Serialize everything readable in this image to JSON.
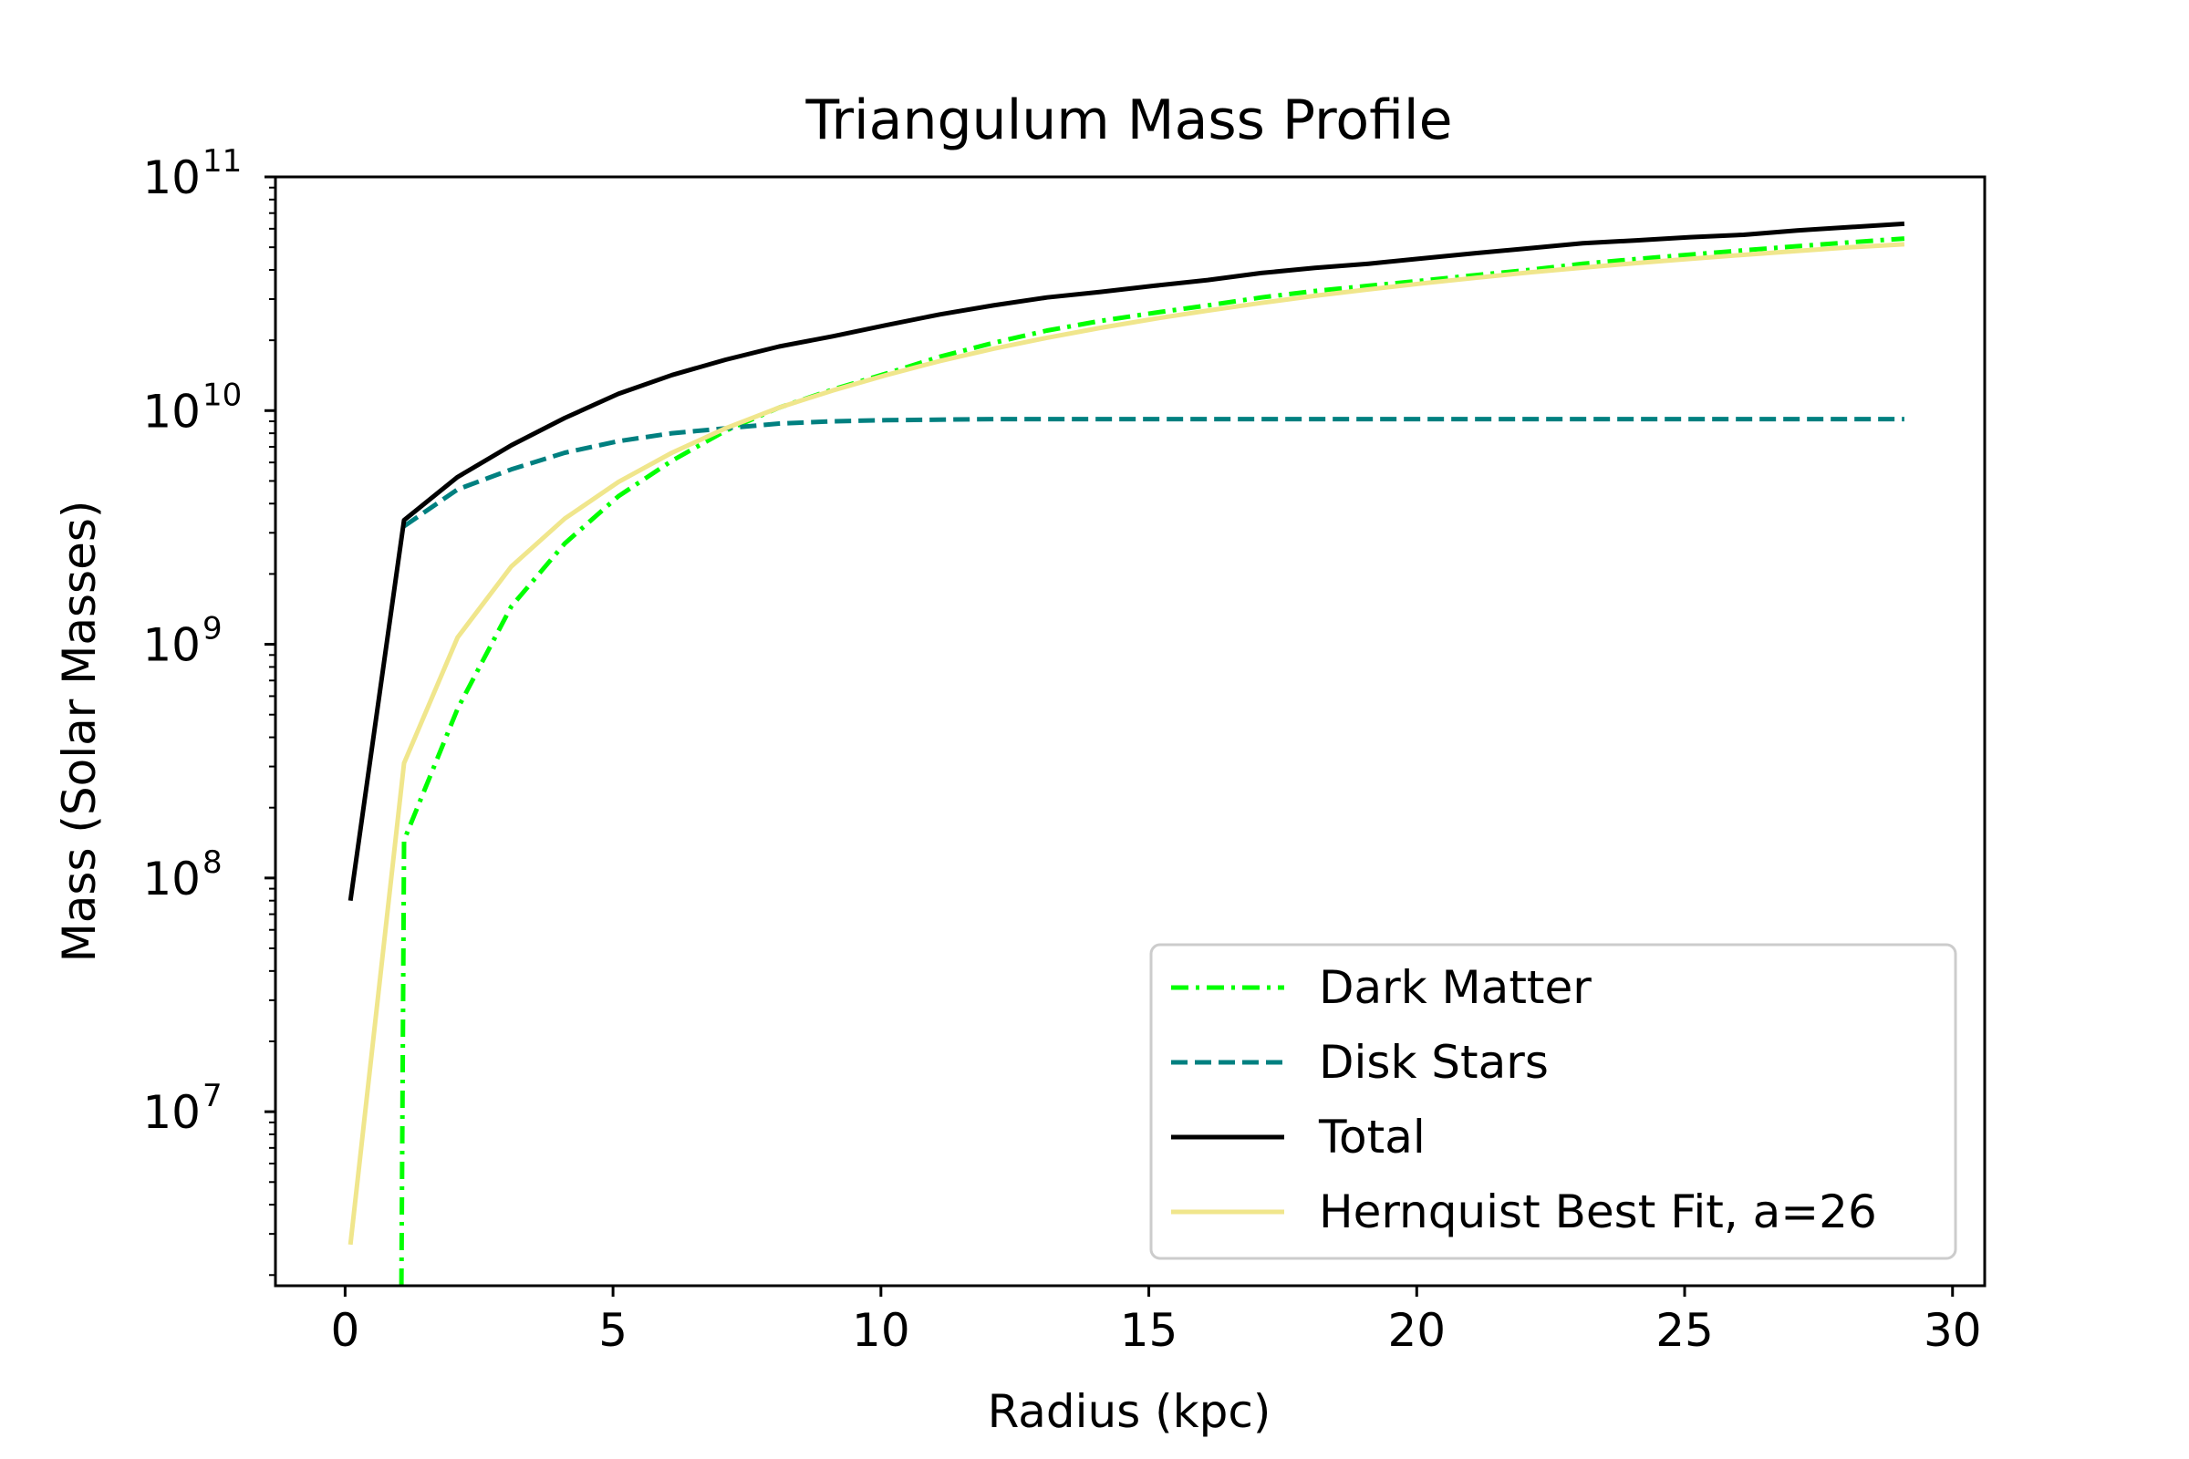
{
  "chart_data": {
    "type": "line",
    "title": "Triangulum Mass Profile",
    "xlabel": "Radius (kpc)",
    "ylabel": "Mass (Solar Masses)",
    "xlim": [
      -1.3,
      30.6
    ],
    "ylim": [
      1800000.0,
      100000000000.0
    ],
    "yscale": "log",
    "grid": false,
    "legend_position": "lower-right",
    "x_ticks": [
      0,
      5,
      10,
      15,
      20,
      25,
      30
    ],
    "y_ticks": [
      {
        "base": "10",
        "exp": "7",
        "value": 10000000.0
      },
      {
        "base": "10",
        "exp": "8",
        "value": 100000000.0
      },
      {
        "base": "10",
        "exp": "9",
        "value": 1000000000.0
      },
      {
        "base": "10",
        "exp": "10",
        "value": 10000000000.0
      },
      {
        "base": "10",
        "exp": "11",
        "value": 100000000000.0
      }
    ],
    "series": [
      {
        "name": "Dark Matter",
        "color": "#00ff00",
        "style": "dashdot",
        "x": [
          1.05,
          1.1,
          2.1,
          3.1,
          4.1,
          5.1,
          6.1,
          7.1,
          8.1,
          9.1,
          10.1,
          11.1,
          12.1,
          13.1,
          14.1,
          15.1,
          16.1,
          17.1,
          18.1,
          19.1,
          20.1,
          21.1,
          22.1,
          23.1,
          24.1,
          25.1,
          26.1,
          27.1,
          28.1,
          29.1
        ],
        "y": [
          1800000.0,
          145000000.0,
          530000000.0,
          1450000000.0,
          2700000000.0,
          4300000000.0,
          6100000000.0,
          8200000000.0,
          10300000000.0,
          12300000000.0,
          14400000000.0,
          17000000000.0,
          19500000000.0,
          22000000000.0,
          24200000000.0,
          26200000000.0,
          28200000000.0,
          30500000000.0,
          32500000000.0,
          34200000000.0,
          36000000000.0,
          38000000000.0,
          40000000000.0,
          42500000000.0,
          44500000000.0,
          46500000000.0,
          48500000000.0,
          50500000000.0,
          52500000000.0,
          54500000000.0
        ]
      },
      {
        "name": "Disk Stars",
        "color": "#008080",
        "style": "dashed",
        "x": [
          1.1,
          2.1,
          3.1,
          4.1,
          5.1,
          6.1,
          7.1,
          8.1,
          9.1,
          10.1,
          12.1,
          15.1,
          20.1,
          25.1,
          29.1
        ],
        "y": [
          3200000000.0,
          4600000000.0,
          5600000000.0,
          6600000000.0,
          7400000000.0,
          8000000000.0,
          8400000000.0,
          8800000000.0,
          9000000000.0,
          9100000000.0,
          9200000000.0,
          9200000000.0,
          9200000000.0,
          9200000000.0,
          9200000000.0
        ]
      },
      {
        "name": "Total",
        "color": "#000000",
        "style": "solid",
        "x": [
          0.1,
          1.1,
          2.1,
          3.1,
          4.1,
          5.1,
          6.1,
          7.1,
          8.1,
          9.1,
          10.1,
          11.1,
          12.1,
          13.1,
          14.1,
          15.1,
          16.1,
          17.1,
          18.1,
          19.1,
          20.1,
          21.1,
          22.1,
          23.1,
          24.1,
          25.1,
          26.1,
          27.1,
          28.1,
          29.1
        ],
        "y": [
          80000000.0,
          3400000000.0,
          5200000000.0,
          7100000000.0,
          9300000000.0,
          11800000000.0,
          14200000000.0,
          16500000000.0,
          18800000000.0,
          20800000000.0,
          23200000000.0,
          25800000000.0,
          28200000000.0,
          30500000000.0,
          32200000000.0,
          34200000000.0,
          36200000000.0,
          38800000000.0,
          40800000000.0,
          42500000000.0,
          44800000000.0,
          47200000000.0,
          49500000000.0,
          52000000000.0,
          53500000000.0,
          55200000000.0,
          56500000000.0,
          59000000000.0,
          61000000000.0,
          63000000000.0
        ]
      },
      {
        "name": "Hernquist Best Fit, a=26",
        "color": "#f0e68c",
        "style": "solid",
        "x": [
          0.1,
          1.1,
          2.1,
          3.1,
          4.1,
          5.1,
          6.1,
          7.1,
          8.1,
          9.1,
          10.1,
          11.1,
          12.1,
          13.1,
          14.1,
          15.1,
          16.1,
          17.1,
          18.1,
          19.1,
          20.1,
          21.1,
          22.1,
          23.1,
          24.1,
          25.1,
          26.1,
          27.1,
          28.1,
          29.1
        ],
        "y": [
          2700000.0,
          310000000.0,
          1070000000.0,
          2150000000.0,
          3450000000.0,
          4950000000.0,
          6600000000.0,
          8400000000.0,
          10300000000.0,
          12200000000.0,
          14200000000.0,
          16300000000.0,
          18400000000.0,
          20500000000.0,
          22600000000.0,
          24700000000.0,
          26800000000.0,
          28900000000.0,
          31000000000.0,
          33000000000.0,
          35000000000.0,
          37000000000.0,
          39000000000.0,
          40900000000.0,
          42800000000.0,
          44600000000.0,
          46400000000.0,
          48200000000.0,
          50000000000.0,
          51500000000.0
        ]
      }
    ]
  }
}
